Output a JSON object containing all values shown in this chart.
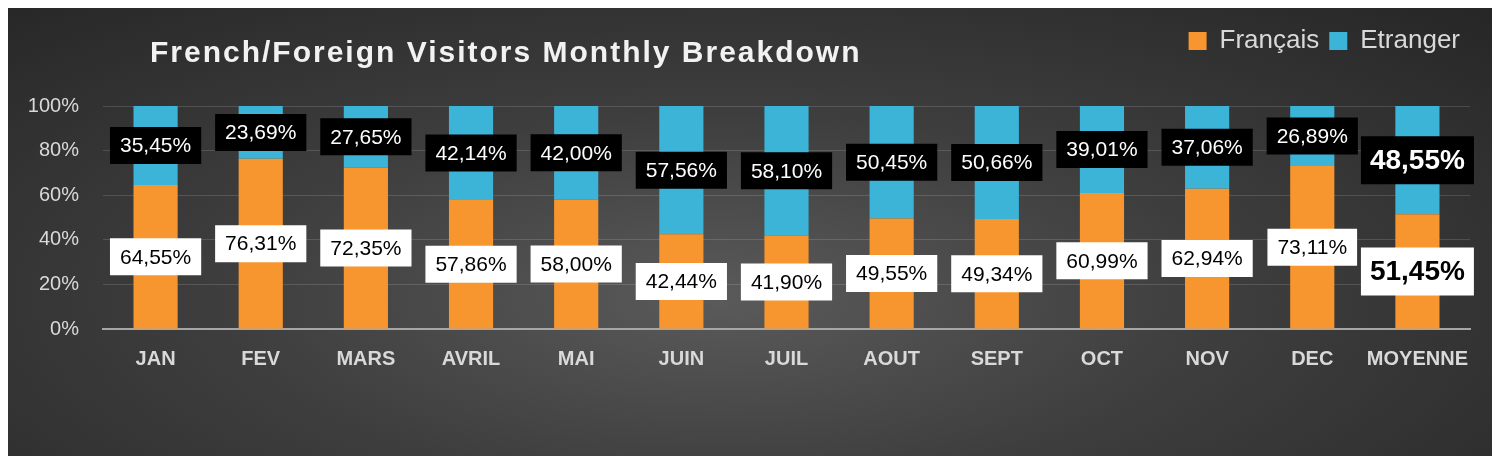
{
  "chart_data": {
    "type": "bar",
    "title": "French/Foreign Visitors Monthly Breakdown",
    "categories": [
      "JAN",
      "FEV",
      "MARS",
      "AVRIL",
      "MAI",
      "JUIN",
      "JUIL",
      "AOUT",
      "SEPT",
      "OCT",
      "NOV",
      "DEC",
      "MOYENNE"
    ],
    "series": [
      {
        "name": "Français",
        "color": "#f7962f",
        "values": [
          64.55,
          76.31,
          72.35,
          57.86,
          58.0,
          42.44,
          41.9,
          49.55,
          49.34,
          60.99,
          62.94,
          73.11,
          51.45
        ],
        "value_labels": [
          "64,55%",
          "76,31%",
          "72,35%",
          "57,86%",
          "58,00%",
          "42,44%",
          "41,90%",
          "49,55%",
          "49,34%",
          "60,99%",
          "62,94%",
          "73,11%",
          "51,45%"
        ]
      },
      {
        "name": "Etranger",
        "color": "#3cb4d8",
        "values": [
          35.45,
          23.69,
          27.65,
          42.14,
          42.0,
          57.56,
          58.1,
          50.45,
          50.66,
          39.01,
          37.06,
          26.89,
          48.55
        ],
        "value_labels": [
          "35,45%",
          "23,69%",
          "27,65%",
          "42,14%",
          "42,00%",
          "57,56%",
          "58,10%",
          "50,45%",
          "50,66%",
          "39,01%",
          "37,06%",
          "26,89%",
          "48,55%"
        ]
      }
    ],
    "stacked": true,
    "ylim": [
      0,
      100
    ],
    "yticks": [
      {
        "value": 0,
        "label": "0%"
      },
      {
        "value": 20,
        "label": "20%"
      },
      {
        "value": 40,
        "label": "40%"
      },
      {
        "value": 60,
        "label": "60%"
      },
      {
        "value": 80,
        "label": "80%"
      },
      {
        "value": 100,
        "label": "100%"
      }
    ],
    "grid": "y",
    "legend": "top right"
  }
}
